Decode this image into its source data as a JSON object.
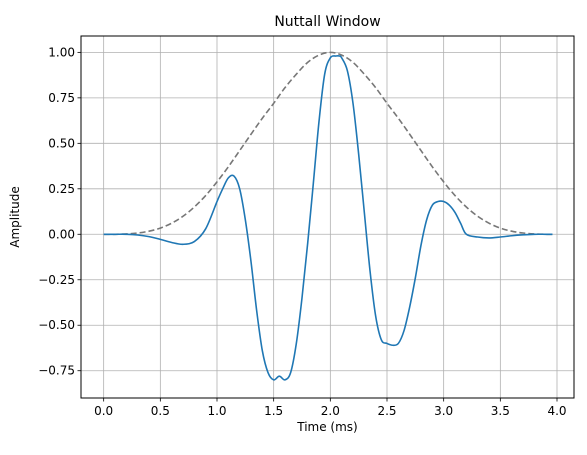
{
  "chart_data": {
    "type": "line",
    "title": "Nuttall Window",
    "xlabel": "Time (ms)",
    "ylabel": "Amplitude",
    "xlim": [
      -0.2,
      4.15
    ],
    "ylim": [
      -0.9,
      1.09
    ],
    "xticks": [
      0.0,
      0.5,
      1.0,
      1.5,
      2.0,
      2.5,
      3.0,
      3.5,
      4.0
    ],
    "xtick_labels": [
      "0.0",
      "0.5",
      "1.0",
      "1.5",
      "2.0",
      "2.5",
      "3.0",
      "3.5",
      "4.0"
    ],
    "yticks": [
      -0.75,
      -0.5,
      -0.25,
      0.0,
      0.25,
      0.5,
      0.75,
      1.0
    ],
    "ytick_labels": [
      "−0.75",
      "−0.50",
      "−0.25",
      "0.00",
      "0.25",
      "0.50",
      "0.75",
      "1.00"
    ],
    "grid": true,
    "series": [
      {
        "style": "dashed",
        "color": "#777777",
        "x": [
          0.0,
          0.1,
          0.2,
          0.3,
          0.4,
          0.5,
          0.6,
          0.7,
          0.8,
          0.9,
          1.0,
          1.1,
          1.2,
          1.3,
          1.4,
          1.5,
          1.6,
          1.7,
          1.8,
          1.9,
          2.0,
          2.1,
          2.2,
          2.3,
          2.4,
          2.5,
          2.6,
          2.7,
          2.8,
          2.9,
          3.0,
          3.1,
          3.2,
          3.3,
          3.4,
          3.5,
          3.6,
          3.7,
          3.8,
          3.9,
          3.96
        ],
        "y": [
          0.0,
          0.0,
          0.002,
          0.007,
          0.017,
          0.034,
          0.061,
          0.099,
          0.15,
          0.213,
          0.288,
          0.371,
          0.46,
          0.55,
          0.638,
          0.72,
          0.806,
          0.88,
          0.945,
          0.985,
          1.0,
          0.985,
          0.945,
          0.88,
          0.806,
          0.72,
          0.638,
          0.55,
          0.46,
          0.371,
          0.288,
          0.213,
          0.15,
          0.099,
          0.061,
          0.034,
          0.017,
          0.007,
          0.002,
          0.0,
          0.0
        ]
      },
      {
        "style": "solid",
        "color": "#1f77b4",
        "x": [
          0.0,
          0.1,
          0.2,
          0.3,
          0.4,
          0.5,
          0.6,
          0.7,
          0.8,
          0.9,
          1.0,
          1.05,
          1.1,
          1.15,
          1.2,
          1.25,
          1.3,
          1.35,
          1.4,
          1.45,
          1.5,
          1.55,
          1.6,
          1.65,
          1.7,
          1.75,
          1.8,
          1.85,
          1.9,
          1.95,
          2.0,
          2.05,
          2.08,
          2.1,
          2.15,
          2.2,
          2.25,
          2.3,
          2.35,
          2.4,
          2.45,
          2.5,
          2.55,
          2.6,
          2.65,
          2.7,
          2.75,
          2.8,
          2.85,
          2.9,
          2.95,
          3.0,
          3.05,
          3.1,
          3.15,
          3.2,
          3.3,
          3.4,
          3.5,
          3.6,
          3.7,
          3.8,
          3.9,
          3.96
        ],
        "y": [
          0.0,
          0.0,
          0.0,
          -0.004,
          -0.013,
          -0.028,
          -0.045,
          -0.055,
          -0.04,
          0.03,
          0.18,
          0.25,
          0.31,
          0.32,
          0.25,
          0.08,
          -0.15,
          -0.42,
          -0.64,
          -0.76,
          -0.8,
          -0.78,
          -0.8,
          -0.76,
          -0.6,
          -0.35,
          -0.05,
          0.28,
          0.62,
          0.88,
          0.97,
          0.98,
          0.98,
          0.97,
          0.9,
          0.72,
          0.44,
          0.12,
          -0.2,
          -0.45,
          -0.58,
          -0.6,
          -0.61,
          -0.6,
          -0.53,
          -0.4,
          -0.24,
          -0.06,
          0.08,
          0.16,
          0.18,
          0.18,
          0.16,
          0.12,
          0.06,
          0.0,
          -0.015,
          -0.02,
          -0.015,
          -0.008,
          -0.003,
          0.0,
          0.0,
          0.0
        ]
      }
    ]
  }
}
